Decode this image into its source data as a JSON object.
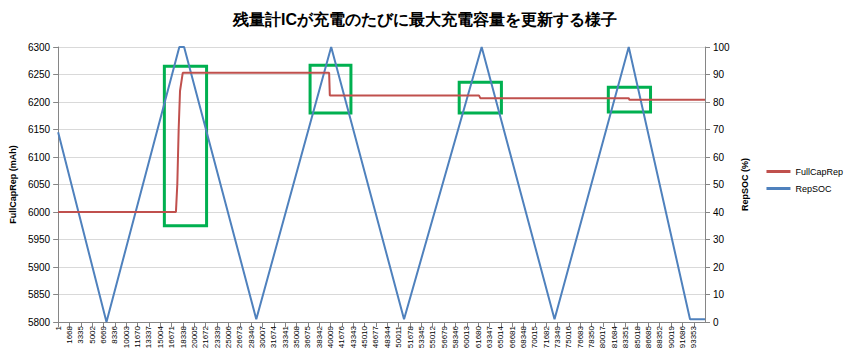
{
  "chart_data": {
    "type": "line",
    "title": "残量計ICが充電のたびに最大充電容量を更新する様子",
    "y_label": "FullCapRep (mAh)",
    "y2_label": "RepSOC (%)",
    "xlim": [
      1,
      95000
    ],
    "xticks": [
      1,
      1668,
      3335,
      5002,
      6669,
      8336,
      10003,
      11670,
      13337,
      15004,
      16671,
      18338,
      20005,
      21672,
      23339,
      25006,
      26673,
      28340,
      30007,
      31674,
      33341,
      35008,
      36675,
      38342,
      40009,
      41676,
      43343,
      45010,
      46677,
      48344,
      50011,
      51678,
      53345,
      55012,
      56679,
      58346,
      60013,
      61680,
      63347,
      65014,
      66681,
      68348,
      70015,
      71682,
      73349,
      75016,
      76683,
      78350,
      80017,
      81684,
      83351,
      85018,
      86685,
      88352,
      90019,
      91686,
      93353
    ],
    "ylim": [
      5800,
      6300
    ],
    "yticks": [
      5800,
      5850,
      5900,
      5950,
      6000,
      6050,
      6100,
      6150,
      6200,
      6250,
      6300
    ],
    "y2lim": [
      0,
      100
    ],
    "y2ticks": [
      0,
      10,
      20,
      30,
      40,
      50,
      60,
      70,
      80,
      90,
      100
    ],
    "grid": true,
    "legend": "right",
    "series": [
      {
        "name": "FullCapRep",
        "color": "#c0504d",
        "marker": "none",
        "line_style": "solid",
        "x": [
          1,
          17300,
          17500,
          17700,
          17900,
          18300,
          39800,
          39900,
          61800,
          62000,
          83800,
          83900,
          95000
        ],
        "values": [
          6000,
          6000,
          6050,
          6150,
          6220,
          6253,
          6253,
          6212,
          6212,
          6207,
          6207,
          6204,
          6204
        ]
      },
      {
        "name": "RepSOC",
        "color": "#4f81bd",
        "marker": "none",
        "line_style": "solid",
        "axis": "y2",
        "x": [
          1,
          7100,
          17800,
          18500,
          29100,
          40100,
          50800,
          62200,
          72900,
          83800,
          92800,
          95000
        ],
        "values": [
          69,
          0,
          100,
          100,
          1,
          100,
          1,
          100,
          1,
          100,
          1,
          1
        ]
      }
    ],
    "highlights": [
      {
        "x": [
          15600,
          21800
        ],
        "y": [
          5975,
          6265
        ],
        "color": "#00b050"
      },
      {
        "x": [
          37000,
          43000
        ],
        "y": [
          6180,
          6267
        ],
        "color": "#00b050"
      },
      {
        "x": [
          58900,
          65100
        ],
        "y": [
          6180,
          6236
        ],
        "color": "#00b050"
      },
      {
        "x": [
          80800,
          87000
        ],
        "y": [
          6182,
          6227
        ],
        "color": "#00b050"
      }
    ]
  }
}
